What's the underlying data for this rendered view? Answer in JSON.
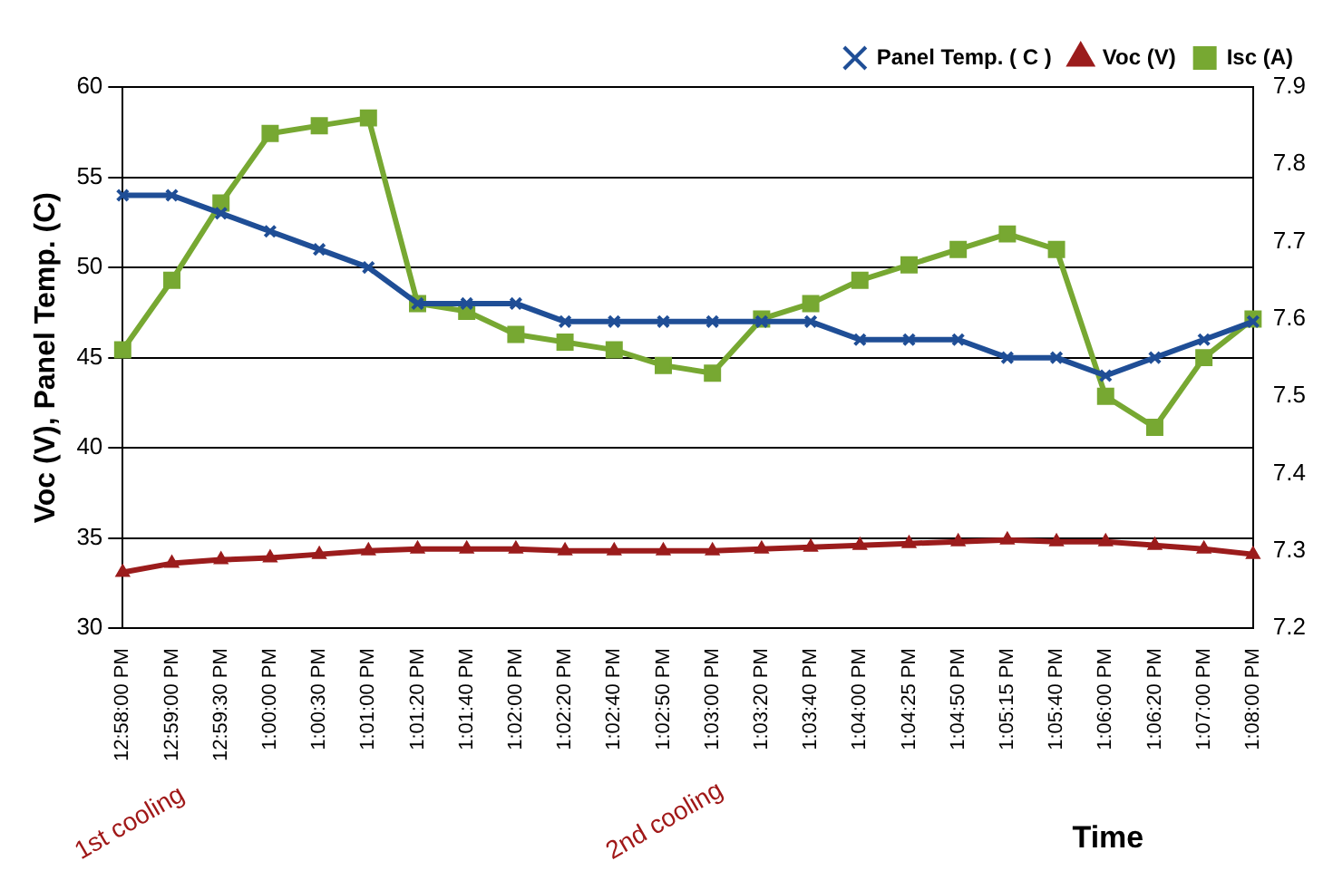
{
  "chart_data": {
    "type": "line",
    "xlabel": "Time",
    "ylabel": "Voc (V), Panel Temp. (C)",
    "categories": [
      "12:58:00 PM",
      "12:59:00 PM",
      "12:59:30 PM",
      "1:00:00 PM",
      "1:00:30 PM",
      "1:01:00 PM",
      "1:01:20 PM",
      "1:01:40 PM",
      "1:02:00 PM",
      "1:02:20 PM",
      "1:02:40 PM",
      "1:02:50 PM",
      "1:03:00 PM",
      "1:03:20 PM",
      "1:03:40 PM",
      "1:04:00 PM",
      "1:04:25 PM",
      "1:04:50 PM",
      "1:05:15 PM",
      "1:05:40 PM",
      "1:06:00 PM",
      "1:06:20 PM",
      "1:07:00 PM",
      "1:08:00 PM"
    ],
    "series": [
      {
        "name": "Panel Temp. ( C )",
        "color": "#1f4e96",
        "marker": "cross",
        "values": [
          54,
          54,
          53,
          52,
          51,
          50,
          48,
          48,
          48,
          47,
          47,
          47,
          47,
          47,
          47,
          46,
          46,
          46,
          45,
          45,
          44,
          45,
          46,
          47
        ]
      },
      {
        "name": "Voc (V)",
        "color": "#9b1c1c",
        "marker": "triangle",
        "values": [
          33.1,
          33.6,
          33.8,
          33.9,
          34.1,
          34.3,
          34.4,
          34.4,
          34.4,
          34.3,
          34.3,
          34.3,
          34.3,
          34.4,
          34.5,
          34.6,
          34.7,
          34.8,
          34.9,
          34.8,
          34.8,
          34.6,
          34.4,
          34.1
        ]
      },
      {
        "name": "Isc (A)",
        "color": "#77a832",
        "marker": "square",
        "axis": "y2",
        "values": [
          7.56,
          7.65,
          7.75,
          7.84,
          7.85,
          7.86,
          7.62,
          7.61,
          7.58,
          7.57,
          7.56,
          7.54,
          7.53,
          7.6,
          7.62,
          7.65,
          7.67,
          7.69,
          7.71,
          7.69,
          7.5,
          7.46,
          7.55,
          7.6
        ]
      }
    ],
    "ylim": [
      30,
      60
    ],
    "yticks": [
      30,
      35,
      40,
      45,
      50,
      55,
      60
    ],
    "y2lim": [
      7.2,
      7.9
    ],
    "y2ticks": [
      7.2,
      7.3,
      7.4,
      7.5,
      7.6,
      7.7,
      7.8,
      7.9
    ],
    "grid": "y",
    "legend": "top right",
    "annotations": [
      "1st cooling",
      "2nd cooling"
    ]
  }
}
